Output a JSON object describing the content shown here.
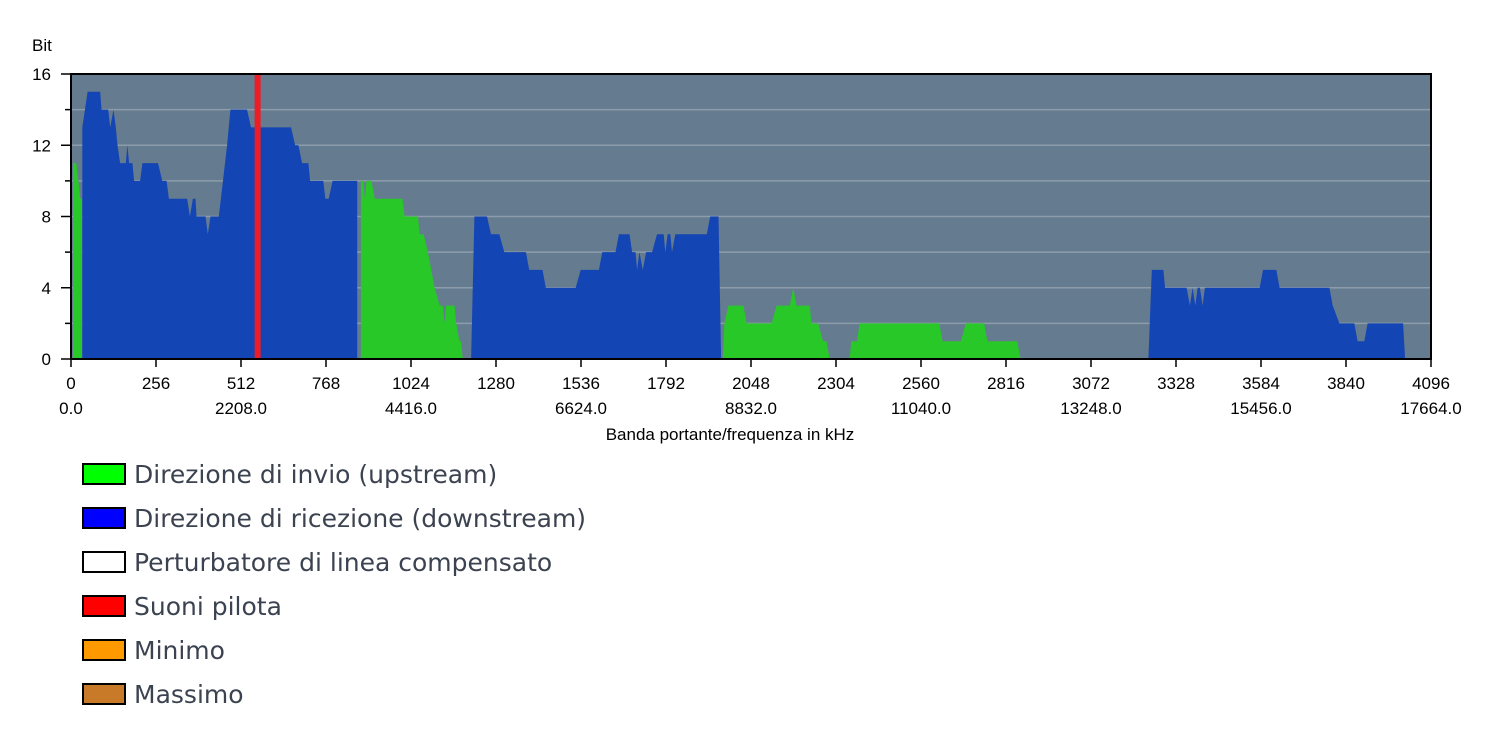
{
  "chart_data": {
    "type": "area",
    "title": "",
    "ylabel": "Bit",
    "xlabel": "Banda portante/frequenza in kHz",
    "xlim": [
      0,
      4096
    ],
    "ylim": [
      0,
      16
    ],
    "grid": true,
    "y_ticks": [
      "0",
      "4",
      "8",
      "12",
      "16"
    ],
    "x_ticks": [
      {
        "tone": 0,
        "label": "0",
        "freq": "0.0"
      },
      {
        "tone": 256,
        "label": "256",
        "freq": ""
      },
      {
        "tone": 512,
        "label": "512",
        "freq": "2208.0"
      },
      {
        "tone": 768,
        "label": "768",
        "freq": ""
      },
      {
        "tone": 1024,
        "label": "1024",
        "freq": "4416.0"
      },
      {
        "tone": 1280,
        "label": "1280",
        "freq": ""
      },
      {
        "tone": 1536,
        "label": "1536",
        "freq": "6624.0"
      },
      {
        "tone": 1792,
        "label": "1792",
        "freq": ""
      },
      {
        "tone": 2048,
        "label": "2048",
        "freq": "8832.0"
      },
      {
        "tone": 2304,
        "label": "2304",
        "freq": ""
      },
      {
        "tone": 2560,
        "label": "2560",
        "freq": "11040.0"
      },
      {
        "tone": 2816,
        "label": "2816",
        "freq": ""
      },
      {
        "tone": 3072,
        "label": "3072",
        "freq": "13248.0"
      },
      {
        "tone": 3328,
        "label": "3328",
        "freq": ""
      },
      {
        "tone": 3584,
        "label": "3584",
        "freq": "15456.0"
      },
      {
        "tone": 3840,
        "label": "3840",
        "freq": ""
      },
      {
        "tone": 4096,
        "label": "4096",
        "freq": "17664.0"
      }
    ],
    "colors": {
      "plot_background": "#657b8f",
      "grid": "#8c9cab",
      "upstream": "#28c828",
      "downstream": "#1445b4",
      "pilot": "#ee1c24"
    },
    "series": [
      {
        "name": "Direzione di invio (upstream)",
        "color": "#28c828",
        "segments": [
          [
            [
              6,
              0
            ],
            [
              6,
              11
            ],
            [
              16,
              11
            ],
            [
              28,
              9
            ],
            [
              33,
              9
            ],
            [
              33,
              0
            ]
          ],
          [
            [
              873,
              0
            ],
            [
              873,
              10
            ],
            [
              880,
              10
            ],
            [
              885,
              9
            ],
            [
              890,
              10
            ],
            [
              905,
              10
            ],
            [
              915,
              9
            ],
            [
              998,
              9
            ],
            [
              1005,
              8
            ],
            [
              1045,
              8
            ],
            [
              1050,
              7
            ],
            [
              1062,
              7
            ],
            [
              1075,
              6
            ],
            [
              1085,
              5
            ],
            [
              1095,
              4
            ],
            [
              1110,
              3
            ],
            [
              1120,
              3
            ],
            [
              1125,
              2
            ],
            [
              1130,
              3
            ],
            [
              1155,
              3
            ],
            [
              1160,
              2
            ],
            [
              1170,
              1
            ],
            [
              1175,
              1
            ],
            [
              1180,
              0
            ]
          ],
          [
            [
              1963,
              0
            ],
            [
              1968,
              2
            ],
            [
              1980,
              3
            ],
            [
              2025,
              3
            ],
            [
              2035,
              2
            ],
            [
              2110,
              2
            ],
            [
              2125,
              3
            ],
            [
              2165,
              3
            ],
            [
              2175,
              4
            ],
            [
              2185,
              3
            ],
            [
              2225,
              3
            ],
            [
              2230,
              2
            ],
            [
              2250,
              2
            ],
            [
              2265,
              1
            ],
            [
              2275,
              1
            ],
            [
              2285,
              0
            ]
          ],
          [
            [
              2345,
              0
            ],
            [
              2350,
              1
            ],
            [
              2367,
              1
            ],
            [
              2375,
              2
            ],
            [
              2615,
              2
            ],
            [
              2625,
              1
            ],
            [
              2680,
              1
            ],
            [
              2695,
              2
            ],
            [
              2750,
              2
            ],
            [
              2760,
              1
            ],
            [
              2850,
              1
            ],
            [
              2860,
              0
            ]
          ]
        ]
      },
      {
        "name": "Direzione di ricezione (downstream)",
        "color": "#1445b4",
        "segments": [
          [
            [
              34,
              0
            ],
            [
              34,
              13
            ],
            [
              50,
              15
            ],
            [
              88,
              15
            ],
            [
              92,
              14
            ],
            [
              112,
              14
            ],
            [
              118,
              13
            ],
            [
              128,
              14
            ],
            [
              135,
              13
            ],
            [
              140,
              12
            ],
            [
              148,
              11
            ],
            [
              165,
              11
            ],
            [
              170,
              12
            ],
            [
              175,
              11
            ],
            [
              185,
              11
            ],
            [
              190,
              10
            ],
            [
              208,
              10
            ],
            [
              215,
              11
            ],
            [
              262,
              11
            ],
            [
              275,
              10
            ],
            [
              288,
              10
            ],
            [
              295,
              9
            ],
            [
              350,
              9
            ],
            [
              358,
              8
            ],
            [
              367,
              9
            ],
            [
              375,
              9
            ],
            [
              378,
              8
            ],
            [
              405,
              8
            ],
            [
              412,
              7
            ],
            [
              420,
              8
            ],
            [
              430,
              8
            ],
            [
              445,
              8
            ],
            [
              470,
              12
            ],
            [
              480,
              14
            ],
            [
              530,
              14
            ],
            [
              542,
              13
            ],
            [
              575,
              13
            ],
            [
              630,
              13
            ],
            [
              663,
              13
            ],
            [
              675,
              12
            ],
            [
              685,
              12
            ],
            [
              696,
              11
            ],
            [
              715,
              11
            ],
            [
              720,
              10
            ],
            [
              760,
              10
            ],
            [
              766,
              9
            ],
            [
              776,
              9
            ],
            [
              788,
              10
            ],
            [
              807,
              10
            ],
            [
              818,
              10
            ],
            [
              862,
              10
            ],
            [
              862,
              0
            ]
          ],
          [
            [
              1205,
              0
            ],
            [
              1215,
              8
            ],
            [
              1253,
              8
            ],
            [
              1265,
              7
            ],
            [
              1290,
              7
            ],
            [
              1305,
              6
            ],
            [
              1370,
              6
            ],
            [
              1380,
              5
            ],
            [
              1420,
              5
            ],
            [
              1430,
              4
            ],
            [
              1520,
              4
            ],
            [
              1535,
              5
            ],
            [
              1590,
              5
            ],
            [
              1600,
              6
            ],
            [
              1640,
              6
            ],
            [
              1650,
              7
            ],
            [
              1682,
              7
            ],
            [
              1690,
              6
            ],
            [
              1700,
              6
            ],
            [
              1705,
              5
            ],
            [
              1712,
              6
            ],
            [
              1722,
              5
            ],
            [
              1732,
              6
            ],
            [
              1750,
              6
            ],
            [
              1765,
              7
            ],
            [
              1785,
              7
            ],
            [
              1790,
              6
            ],
            [
              1797,
              7
            ],
            [
              1805,
              7
            ],
            [
              1810,
              6
            ],
            [
              1820,
              7
            ],
            [
              1915,
              7
            ],
            [
              1925,
              8
            ],
            [
              1950,
              8
            ],
            [
              1958,
              0
            ]
          ],
          [
            [
              3245,
              0
            ],
            [
              3255,
              5
            ],
            [
              3290,
              5
            ],
            [
              3295,
              4
            ],
            [
              3360,
              4
            ],
            [
              3370,
              3
            ],
            [
              3378,
              4
            ],
            [
              3386,
              3
            ],
            [
              3393,
              4
            ],
            [
              3400,
              4
            ],
            [
              3408,
              3
            ],
            [
              3415,
              4
            ],
            [
              3500,
              4
            ],
            [
              3580,
              4
            ],
            [
              3590,
              5
            ],
            [
              3630,
              5
            ],
            [
              3640,
              4
            ],
            [
              3790,
              4
            ],
            [
              3800,
              3
            ],
            [
              3820,
              2
            ],
            [
              3865,
              2
            ],
            [
              3875,
              1
            ],
            [
              3895,
              1
            ],
            [
              3905,
              2
            ],
            [
              4000,
              2
            ],
            [
              4012,
              2
            ],
            [
              4018,
              0
            ]
          ]
        ]
      },
      {
        "name": "Perturbatore di linea compensato",
        "color": "#ffffff",
        "segments": []
      },
      {
        "name": "Suoni pilota",
        "color": "#ee1c24",
        "tones": [
          562
        ]
      },
      {
        "name": "Minimo",
        "color": "#ff9900",
        "segments": []
      },
      {
        "name": "Massimo",
        "color": "#c87a28",
        "segments": []
      }
    ]
  }
}
